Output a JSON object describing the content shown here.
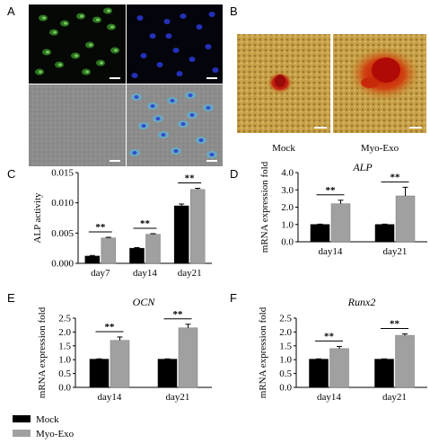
{
  "panel_letters": {
    "A": "A",
    "B": "B",
    "C": "C",
    "D": "D",
    "E": "E",
    "F": "F"
  },
  "micrograph_B": {
    "left_caption": "Mock",
    "right_caption": "Myo-Exo"
  },
  "legend": [
    {
      "name": "Mock",
      "color": "#000000"
    },
    {
      "name": "Myo-Exo",
      "color": "#a0a0a0"
    }
  ],
  "significance_label": "**",
  "chart_data": [
    {
      "id": "C",
      "type": "bar",
      "title": "",
      "ylabel": "ALP activity",
      "categories": [
        "day7",
        "day14",
        "day21"
      ],
      "ylim": [
        0,
        0.015
      ],
      "yticks": [
        "0.000",
        "0.005",
        "0.010",
        "0.015"
      ],
      "series": [
        {
          "name": "Mock",
          "values": [
            0.0012,
            0.0025,
            0.0095
          ],
          "errors": [
            0.0001,
            0.0001,
            0.0003
          ]
        },
        {
          "name": "Myo-Exo",
          "values": [
            0.0042,
            0.0048,
            0.0122
          ],
          "errors": [
            0.0001,
            0.0001,
            0.0002
          ]
        }
      ],
      "significance": [
        "**",
        "**",
        "**"
      ]
    },
    {
      "id": "D",
      "type": "bar",
      "title": "ALP",
      "ylabel": "mRNA expression fold",
      "categories": [
        "day14",
        "day21"
      ],
      "ylim": [
        0,
        4.0
      ],
      "yticks": [
        "0.0",
        "1.0",
        "2.0",
        "3.0",
        "4.0"
      ],
      "series": [
        {
          "name": "Mock",
          "values": [
            1.0,
            1.0
          ],
          "errors": [
            0.02,
            0.02
          ]
        },
        {
          "name": "Myo-Exo",
          "values": [
            2.2,
            2.65
          ],
          "errors": [
            0.2,
            0.5
          ]
        }
      ],
      "significance": [
        "**",
        "**"
      ]
    },
    {
      "id": "E",
      "type": "bar",
      "title": "OCN",
      "ylabel": "mRNA expression fold",
      "categories": [
        "day14",
        "day21"
      ],
      "ylim": [
        0,
        2.5
      ],
      "yticks": [
        "0.0",
        "0.5",
        "1.0",
        "1.5",
        "2.0",
        "2.5"
      ],
      "series": [
        {
          "name": "Mock",
          "values": [
            1.02,
            1.02
          ],
          "errors": [
            0.01,
            0.01
          ]
        },
        {
          "name": "Myo-Exo",
          "values": [
            1.7,
            2.15
          ],
          "errors": [
            0.12,
            0.13
          ]
        }
      ],
      "significance": [
        "**",
        "**"
      ]
    },
    {
      "id": "F",
      "type": "bar",
      "title": "Runx2",
      "ylabel": "mRNA expression fold",
      "categories": [
        "day14",
        "day21"
      ],
      "ylim": [
        0,
        2.5
      ],
      "yticks": [
        "0.0",
        "0.5",
        "1.0",
        "1.5",
        "2.0",
        "2.5"
      ],
      "series": [
        {
          "name": "Mock",
          "values": [
            1.02,
            1.02
          ],
          "errors": [
            0.01,
            0.01
          ]
        },
        {
          "name": "Myo-Exo",
          "values": [
            1.4,
            1.88
          ],
          "errors": [
            0.08,
            0.05
          ]
        }
      ],
      "significance": [
        "**",
        "**"
      ]
    }
  ]
}
